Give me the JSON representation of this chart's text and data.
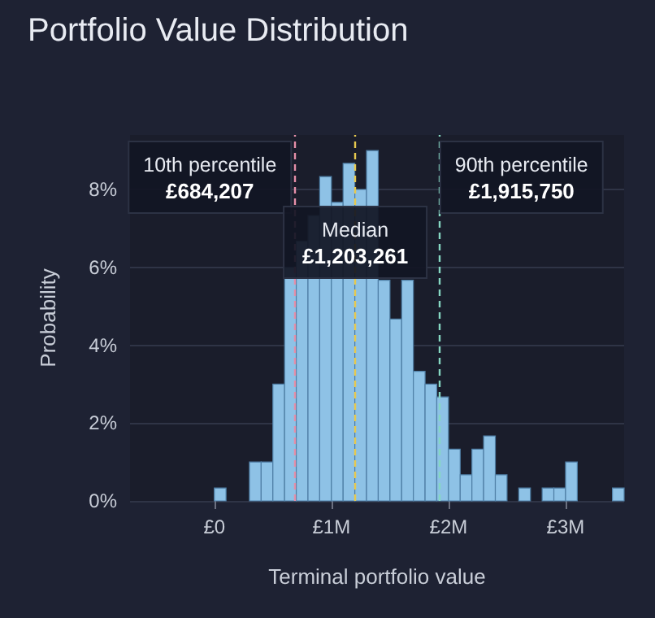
{
  "chart_data": {
    "type": "histogram",
    "title": "Portfolio Value Distribution",
    "xlabel": "Terminal portfolio value",
    "ylabel": "Probability",
    "color": "#8ec2e6",
    "bins": [
      0,
      0.1,
      0.2,
      0.3,
      0.4,
      0.5,
      0.6,
      0.7,
      0.8,
      0.9,
      1.0,
      1.1,
      1.2,
      1.3,
      1.4,
      1.5,
      1.6,
      1.7,
      1.8,
      1.9,
      2.0,
      2.1,
      2.2,
      2.3,
      2.4,
      2.5,
      2.6,
      2.7,
      2.8,
      2.9,
      3.0,
      3.1,
      3.2,
      3.3,
      3.4,
      3.5
    ],
    "values": [
      0.33,
      0,
      0,
      1.0,
      1.0,
      3.0,
      6.0,
      6.67,
      7.33,
      8.33,
      7.67,
      8.67,
      8.0,
      9.0,
      5.67,
      4.67,
      5.67,
      3.33,
      3.0,
      2.67,
      1.33,
      0.67,
      1.33,
      1.67,
      0.67,
      0,
      0.33,
      0,
      0.33,
      0.33,
      1.0,
      0,
      0,
      0,
      0.33
    ],
    "xlim": [
      -0.72,
      3.5
    ],
    "xticks": [
      {
        "value": 0,
        "label": "£0"
      },
      {
        "value": 1,
        "label": "£1M"
      },
      {
        "value": 2,
        "label": "£2M"
      },
      {
        "value": 3,
        "label": "£3M"
      }
    ],
    "ylim": [
      0,
      9.4
    ],
    "yticks": [
      {
        "value": 0,
        "label": "0%"
      },
      {
        "value": 2,
        "label": "2%"
      },
      {
        "value": 4,
        "label": "4%"
      },
      {
        "value": 6,
        "label": "6%"
      },
      {
        "value": 8,
        "label": "8%"
      }
    ],
    "grid": "y",
    "ref_lines": [
      {
        "axis": "x",
        "value": 0.684207,
        "label": "10th percentile\n£684,207",
        "color": "#e58fa9",
        "line_style": "dashed"
      },
      {
        "axis": "x",
        "value": 1.203261,
        "label": "Median\n£1,203,261",
        "color": "#e6c84e",
        "line_style": "dashed"
      },
      {
        "axis": "x",
        "value": 1.91575,
        "label": "90th percentile\n£1,915,750",
        "color": "#86d8c2",
        "line_style": "dashed"
      }
    ]
  }
}
